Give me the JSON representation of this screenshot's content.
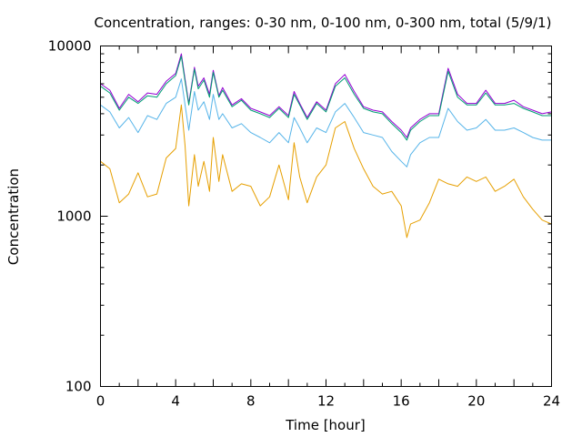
{
  "chart_data": {
    "type": "line",
    "title": "Concentration, ranges: 0-30 nm, 0-100 nm, 0-300 nm, total (5/9/1)",
    "xlabel": "Time [hour]",
    "ylabel": "Concentration",
    "xlim": [
      0,
      24
    ],
    "ylim": [
      100,
      10000
    ],
    "yscale": "log",
    "xticks": [
      0,
      4,
      8,
      12,
      16,
      20,
      24
    ],
    "xtick_labels": [
      "0",
      "4",
      "8",
      "12",
      "16",
      "20",
      "24"
    ],
    "yticks": [
      100,
      1000,
      10000
    ],
    "ytick_labels": [
      "100",
      "1000",
      "10000"
    ],
    "grid": false,
    "legend": "none",
    "x": [
      0,
      0.5,
      1,
      1.5,
      2,
      2.5,
      3,
      3.5,
      4,
      4.3,
      4.5,
      4.7,
      5,
      5.2,
      5.5,
      5.8,
      6,
      6.3,
      6.5,
      7,
      7.5,
      8,
      8.5,
      9,
      9.5,
      10,
      10.3,
      10.6,
      11,
      11.5,
      12,
      12.5,
      13,
      13.5,
      14,
      14.5,
      15,
      15.5,
      16,
      16.3,
      16.5,
      17,
      17.5,
      18,
      18.5,
      19,
      19.5,
      20,
      20.5,
      21,
      21.5,
      22,
      22.5,
      23,
      23.5,
      24
    ],
    "series": [
      {
        "color": "#9400d3",
        "values": [
          6000,
          5500,
          4300,
          5200,
          4700,
          5300,
          5200,
          6200,
          6900,
          9000,
          6400,
          4600,
          7500,
          5800,
          6500,
          5200,
          7200,
          5100,
          5700,
          4500,
          4900,
          4300,
          4100,
          3900,
          4400,
          3900,
          5400,
          4600,
          3800,
          4700,
          4200,
          6000,
          6800,
          5400,
          4400,
          4200,
          4100,
          3600,
          3200,
          2900,
          3300,
          3700,
          4000,
          4000,
          7400,
          5200,
          4600,
          4600,
          5500,
          4600,
          4600,
          4800,
          4400,
          4200,
          4000,
          4100
        ]
      },
      {
        "color": "#009e73",
        "values": [
          5800,
          5300,
          4200,
          5000,
          4600,
          5100,
          5000,
          6000,
          6700,
          8700,
          6200,
          4500,
          7300,
          5600,
          6300,
          5000,
          7000,
          5000,
          5500,
          4400,
          4800,
          4200,
          4000,
          3800,
          4300,
          3800,
          5200,
          4500,
          3700,
          4600,
          4100,
          5800,
          6500,
          5200,
          4300,
          4100,
          4000,
          3500,
          3100,
          2800,
          3200,
          3600,
          3900,
          3900,
          7100,
          5000,
          4500,
          4500,
          5300,
          4500,
          4500,
          4600,
          4300,
          4100,
          3900,
          3900
        ]
      },
      {
        "color": "#56b4e9",
        "values": [
          4500,
          4100,
          3300,
          3800,
          3100,
          3900,
          3700,
          4600,
          5000,
          6400,
          4500,
          3200,
          5400,
          4200,
          4700,
          3700,
          5200,
          3700,
          4000,
          3300,
          3500,
          3100,
          2900,
          2700,
          3100,
          2700,
          3800,
          3300,
          2700,
          3300,
          3100,
          4100,
          4600,
          3800,
          3100,
          3000,
          2900,
          2400,
          2100,
          1950,
          2300,
          2700,
          2900,
          2900,
          4300,
          3600,
          3200,
          3300,
          3700,
          3200,
          3200,
          3300,
          3100,
          2900,
          2800,
          2800
        ]
      },
      {
        "color": "#e69f00",
        "values": [
          2100,
          1900,
          1200,
          1350,
          1800,
          1300,
          1350,
          2200,
          2500,
          4500,
          2600,
          1150,
          2300,
          1500,
          2100,
          1400,
          2900,
          1600,
          2300,
          1400,
          1550,
          1500,
          1150,
          1300,
          2000,
          1250,
          2700,
          1700,
          1200,
          1700,
          2000,
          3300,
          3600,
          2500,
          1900,
          1500,
          1350,
          1400,
          1150,
          750,
          900,
          950,
          1200,
          1650,
          1550,
          1500,
          1700,
          1600,
          1700,
          1400,
          1500,
          1650,
          1300,
          1100,
          950,
          900
        ]
      }
    ]
  }
}
